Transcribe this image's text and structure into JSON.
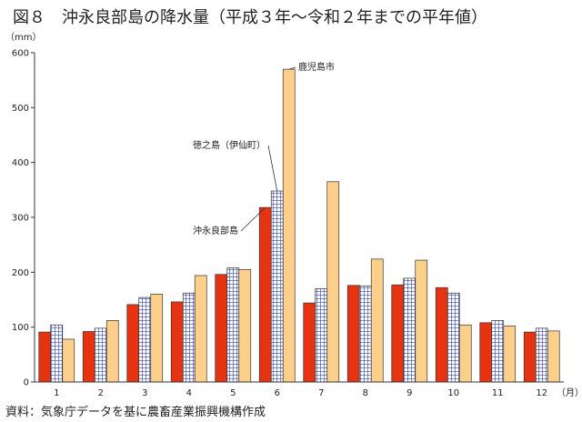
{
  "title": "図８　沖永良部島の降水量（平成３年～令和２年までの平年値）",
  "source": "資料：気象庁データを基に農畜産業振興機構作成",
  "chart_data": {
    "type": "bar",
    "categories": [
      "1",
      "2",
      "3",
      "4",
      "5",
      "6",
      "7",
      "8",
      "9",
      "10",
      "11",
      "12"
    ],
    "x_unit": "（月）",
    "y_unit": "（mm）",
    "ylim": [
      0,
      600
    ],
    "yticks": [
      0,
      100,
      200,
      300,
      400,
      500,
      600
    ],
    "grid": false,
    "series": [
      {
        "name": "沖永良部島",
        "color": "#e63312",
        "pattern": "solid",
        "values": [
          91,
          92,
          141,
          146,
          196,
          318,
          144,
          176,
          177,
          172,
          108,
          91
        ]
      },
      {
        "name": "徳之島（伊仙町）",
        "color": "#3a4ab0",
        "pattern": "grid",
        "values": [
          104,
          98,
          154,
          162,
          208,
          348,
          170,
          175,
          189,
          162,
          112,
          98
        ]
      },
      {
        "name": "鹿児島市",
        "color": "#fcd08a",
        "pattern": "solid",
        "values": [
          78,
          112,
          160,
          194,
          205,
          570,
          365,
          224,
          222,
          104,
          102,
          93
        ]
      }
    ],
    "annotations": [
      {
        "text": "鹿児島市",
        "series": 2,
        "category": "6"
      },
      {
        "text": "徳之島（伊仙町）",
        "series": 1,
        "category": "6"
      },
      {
        "text": "沖永良部島",
        "series": 0,
        "category": "6"
      }
    ]
  }
}
